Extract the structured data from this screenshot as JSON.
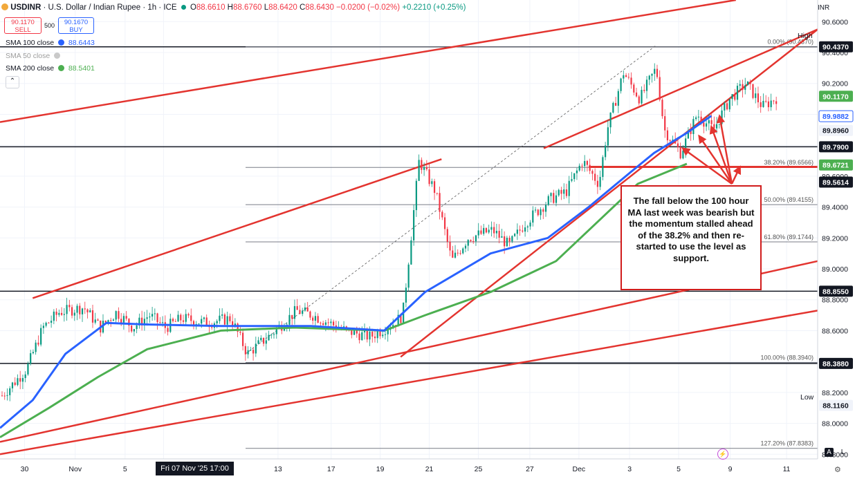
{
  "header": {
    "symbol": "USDINR",
    "title": "U.S. Dollar / Indian Rupee · 1h · ICE",
    "o_label": "O",
    "o_value": "88.6610",
    "h_label": "H",
    "h_value": "88.6760",
    "l_label": "L",
    "l_value": "88.6420",
    "c_label": "C",
    "c_value": "88.6430",
    "chg": "−0.0200 (−0.02%)",
    "chg2": "+0.2210 (+0.25%)"
  },
  "trade": {
    "sell_price": "90.1170",
    "sell_label": "SELL",
    "spread": "500",
    "buy_price": "90.1670",
    "buy_label": "BUY"
  },
  "indicators": [
    {
      "label": "SMA 100 close",
      "value": "88.6443",
      "color": "#2962ff"
    },
    {
      "label": "SMA 50 close",
      "value": "",
      "color": "#9c9c9c"
    },
    {
      "label": "SMA 200 close",
      "value": "88.5401",
      "color": "#4caf50"
    }
  ],
  "currency": "INR",
  "high_label": "High",
  "low_label": "Low",
  "annotation": "The fall below the 100 hour MA last week was bearish but  the momentum stalled ahead of the 38.2% and then re-started to use the level as support.",
  "crosshair_date": "Fri 07 Nov '25   17:00",
  "colors": {
    "up": "#089981",
    "down": "#f23645",
    "sma100": "#2962ff",
    "sma200": "#4caf50",
    "trend": "#e3342f",
    "price_tag": "#131722",
    "green_tag": "#4caf50",
    "blue_tag": "#2962ff"
  },
  "chart_data": {
    "type": "candlestick",
    "x_ticks": [
      "30",
      "Nov",
      "5",
      "10",
      "13",
      "17",
      "19",
      "21",
      "25",
      "27",
      "Dec",
      "3",
      "5",
      "9",
      "11"
    ],
    "y_ticks": [
      "87.8000",
      "88.0000",
      "88.2000",
      "88.4000",
      "88.6000",
      "88.8000",
      "89.0000",
      "89.2000",
      "89.4000",
      "89.6000",
      "89.8000",
      "90.0000",
      "90.2000",
      "90.4000",
      "90.6000"
    ],
    "ylim": [
      87.77,
      90.74
    ],
    "price_tags": [
      {
        "label": "90.4370",
        "value": 90.437,
        "style": "dark"
      },
      {
        "label": "90.1170",
        "value": 90.117,
        "style": "green"
      },
      {
        "label": "89.9882",
        "value": 89.9882,
        "style": "blue"
      },
      {
        "label": "89.8960",
        "value": 89.896,
        "style": "light"
      },
      {
        "label": "89.7900",
        "value": 89.79,
        "style": "dark"
      },
      {
        "label": "89.6721",
        "value": 89.6721,
        "style": "green"
      },
      {
        "label": "89.5614",
        "value": 89.5614,
        "style": "dark"
      },
      {
        "label": "88.8550",
        "value": 88.855,
        "style": "dark"
      },
      {
        "label": "88.3880",
        "value": 88.388,
        "style": "dark"
      },
      {
        "label": "88.1160",
        "value": 88.116,
        "style": "plain"
      }
    ],
    "horizontal_levels": [
      90.437,
      89.79,
      88.855,
      88.388
    ],
    "fibonacci": [
      {
        "label": "0.00% (90.4370)",
        "value": 90.437
      },
      {
        "label": "38.20% (89.6566)",
        "value": 89.6566
      },
      {
        "label": "50.00% (89.4155)",
        "value": 89.4155
      },
      {
        "label": "61.80% (89.1744)",
        "value": 89.1744
      },
      {
        "label": "100.00% (88.3940)",
        "value": 88.394
      },
      {
        "label": "127.20% (87.8383)",
        "value": 87.8383
      }
    ],
    "price_path": [
      [
        0,
        88.18
      ],
      [
        0.03,
        88.35
      ],
      [
        0.05,
        88.62
      ],
      [
        0.07,
        88.72
      ],
      [
        0.1,
        88.75
      ],
      [
        0.12,
        88.62
      ],
      [
        0.14,
        88.72
      ],
      [
        0.16,
        88.62
      ],
      [
        0.18,
        88.7
      ],
      [
        0.2,
        88.62
      ],
      [
        0.22,
        88.68
      ],
      [
        0.25,
        88.65
      ],
      [
        0.28,
        88.68
      ],
      [
        0.3,
        88.45
      ],
      [
        0.33,
        88.58
      ],
      [
        0.36,
        88.73
      ],
      [
        0.38,
        88.7
      ],
      [
        0.42,
        88.6
      ],
      [
        0.45,
        88.56
      ],
      [
        0.48,
        88.65
      ],
      [
        0.49,
        88.7
      ],
      [
        0.51,
        89.7
      ],
      [
        0.53,
        89.5
      ],
      [
        0.55,
        89.05
      ],
      [
        0.57,
        89.2
      ],
      [
        0.6,
        89.25
      ],
      [
        0.62,
        89.15
      ],
      [
        0.64,
        89.3
      ],
      [
        0.67,
        89.45
      ],
      [
        0.69,
        89.5
      ],
      [
        0.71,
        89.7
      ],
      [
        0.73,
        89.55
      ],
      [
        0.74,
        89.9
      ],
      [
        0.76,
        90.27
      ],
      [
        0.78,
        90.1
      ],
      [
        0.8,
        90.3
      ],
      [
        0.81,
        89.9
      ],
      [
        0.83,
        89.75
      ],
      [
        0.85,
        90.0
      ],
      [
        0.87,
        89.9
      ],
      [
        0.89,
        90.1
      ],
      [
        0.91,
        90.2
      ],
      [
        0.93,
        90.05
      ],
      [
        0.95,
        90.117
      ]
    ],
    "sma100": [
      [
        0,
        87.97
      ],
      [
        0.04,
        88.15
      ],
      [
        0.08,
        88.45
      ],
      [
        0.13,
        88.65
      ],
      [
        0.18,
        88.64
      ],
      [
        0.27,
        88.63
      ],
      [
        0.38,
        88.63
      ],
      [
        0.47,
        88.6
      ],
      [
        0.52,
        88.85
      ],
      [
        0.6,
        89.1
      ],
      [
        0.67,
        89.2
      ],
      [
        0.72,
        89.4
      ],
      [
        0.77,
        89.62
      ],
      [
        0.8,
        89.75
      ],
      [
        0.84,
        89.88
      ],
      [
        0.87,
        89.99
      ]
    ],
    "sma200": [
      [
        0,
        87.91
      ],
      [
        0.06,
        88.1
      ],
      [
        0.12,
        88.3
      ],
      [
        0.18,
        88.48
      ],
      [
        0.27,
        88.6
      ],
      [
        0.36,
        88.62
      ],
      [
        0.47,
        88.6
      ],
      [
        0.52,
        88.7
      ],
      [
        0.6,
        88.85
      ],
      [
        0.68,
        89.05
      ],
      [
        0.74,
        89.35
      ],
      [
        0.78,
        89.55
      ],
      [
        0.84,
        89.68
      ]
    ]
  }
}
